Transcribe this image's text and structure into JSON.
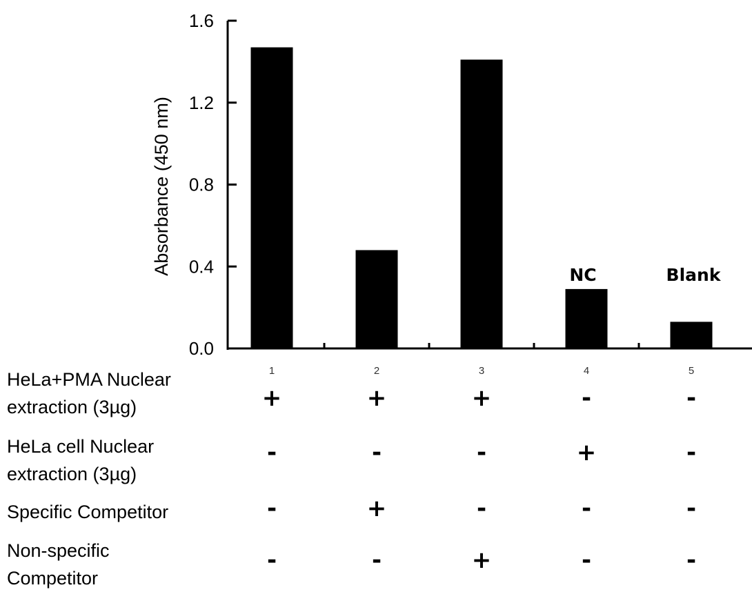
{
  "chart_data": {
    "type": "bar",
    "ylabel": "Absorbance (450 nm)",
    "xlabel": "",
    "title": "",
    "ylim": [
      0,
      1.6
    ],
    "yticks": [
      "0.0",
      "0.4",
      "0.8",
      "1.2",
      "1.6"
    ],
    "categories": [
      "1",
      "2",
      "3",
      "4",
      "5"
    ],
    "values": [
      1.47,
      0.48,
      1.41,
      0.29,
      0.13
    ],
    "bar_color": "#000000",
    "annotations": [
      {
        "category": "4",
        "text": "NC"
      },
      {
        "category": "5",
        "text": "Blank"
      }
    ],
    "grid": false,
    "legend": "none"
  },
  "conditions": [
    {
      "label": "HeLa+PMA Nuclear extraction (3µg)",
      "signs": [
        "+",
        "+",
        "+",
        "-",
        "-"
      ]
    },
    {
      "label": "HeLa cell Nuclear extraction (3µg)",
      "signs": [
        "-",
        "-",
        "-",
        "+",
        "-"
      ]
    },
    {
      "label": "Specific Competitor",
      "signs": [
        "-",
        "+",
        "-",
        "-",
        "-"
      ]
    },
    {
      "label": "Non-specific Competitor",
      "signs": [
        "-",
        "-",
        "+",
        "-",
        "-"
      ]
    }
  ]
}
